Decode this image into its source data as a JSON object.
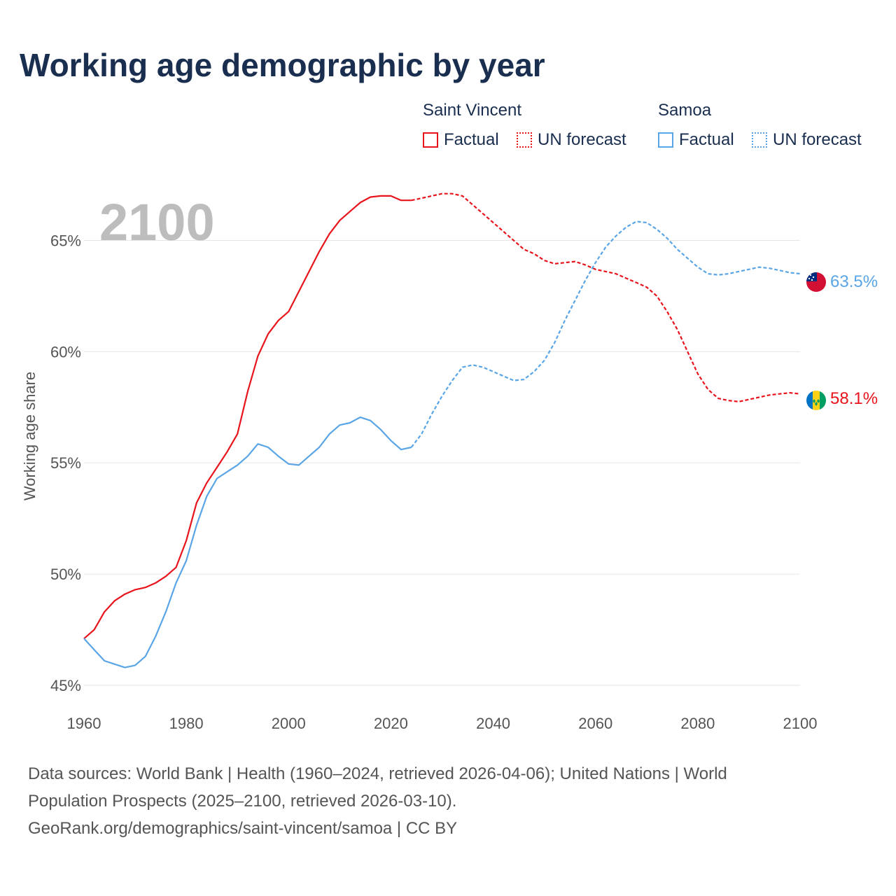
{
  "title": "Working age demographic by year",
  "legend": {
    "groups": [
      {
        "name": "Saint Vincent",
        "color": "#e8141c",
        "factual_label": "Factual",
        "forecast_label": "UN forecast"
      },
      {
        "name": "Samoa",
        "color": "#5aa5e6",
        "factual_label": "Factual",
        "forecast_label": "UN forecast"
      }
    ]
  },
  "chart_data": {
    "type": "line",
    "title": "Working age demographic by year",
    "ylabel": "Working age share",
    "xlabel": "",
    "xlim": [
      1960,
      2100
    ],
    "ylim": [
      45,
      67.5
    ],
    "x_ticks": [
      "1960",
      "1980",
      "2000",
      "2020",
      "2040",
      "2060",
      "2080",
      "2100"
    ],
    "y_ticks": [
      "45%",
      "50%",
      "55%",
      "60%",
      "65%"
    ],
    "y_tick_values": [
      45,
      50,
      55,
      60,
      65
    ],
    "x_tick_values": [
      1960,
      1980,
      2000,
      2020,
      2040,
      2060,
      2080,
      2100
    ],
    "current_year": "2100",
    "forecast_start": 2024,
    "series": [
      {
        "name": "Saint Vincent",
        "color": "#e8141c",
        "end_label": "58.1%",
        "points": [
          [
            1960,
            47.1
          ],
          [
            1962,
            47.5
          ],
          [
            1964,
            48.3
          ],
          [
            1966,
            48.8
          ],
          [
            1968,
            49.1
          ],
          [
            1970,
            49.3
          ],
          [
            1972,
            49.4
          ],
          [
            1974,
            49.6
          ],
          [
            1976,
            49.9
          ],
          [
            1978,
            50.3
          ],
          [
            1980,
            51.5
          ],
          [
            1982,
            53.2
          ],
          [
            1984,
            54.1
          ],
          [
            1986,
            54.8
          ],
          [
            1988,
            55.5
          ],
          [
            1990,
            56.3
          ],
          [
            1992,
            58.2
          ],
          [
            1994,
            59.8
          ],
          [
            1996,
            60.8
          ],
          [
            1998,
            61.4
          ],
          [
            2000,
            61.8
          ],
          [
            2002,
            62.7
          ],
          [
            2004,
            63.6
          ],
          [
            2006,
            64.5
          ],
          [
            2008,
            65.3
          ],
          [
            2010,
            65.9
          ],
          [
            2012,
            66.3
          ],
          [
            2014,
            66.7
          ],
          [
            2016,
            66.95
          ],
          [
            2018,
            67.0
          ],
          [
            2020,
            67.0
          ],
          [
            2022,
            66.8
          ],
          [
            2024,
            66.8
          ],
          [
            2026,
            66.9
          ],
          [
            2028,
            67.0
          ],
          [
            2030,
            67.1
          ],
          [
            2032,
            67.1
          ],
          [
            2034,
            67.0
          ],
          [
            2036,
            66.6
          ],
          [
            2038,
            66.2
          ],
          [
            2040,
            65.8
          ],
          [
            2042,
            65.4
          ],
          [
            2044,
            65.0
          ],
          [
            2046,
            64.6
          ],
          [
            2048,
            64.4
          ],
          [
            2050,
            64.1
          ],
          [
            2052,
            63.95
          ],
          [
            2054,
            64.0
          ],
          [
            2056,
            64.05
          ],
          [
            2058,
            63.9
          ],
          [
            2060,
            63.7
          ],
          [
            2062,
            63.6
          ],
          [
            2064,
            63.5
          ],
          [
            2066,
            63.3
          ],
          [
            2068,
            63.1
          ],
          [
            2070,
            62.9
          ],
          [
            2072,
            62.5
          ],
          [
            2074,
            61.8
          ],
          [
            2076,
            61.0
          ],
          [
            2078,
            60.0
          ],
          [
            2080,
            59.0
          ],
          [
            2082,
            58.3
          ],
          [
            2084,
            57.9
          ],
          [
            2086,
            57.8
          ],
          [
            2088,
            57.75
          ],
          [
            2090,
            57.85
          ],
          [
            2092,
            57.95
          ],
          [
            2094,
            58.05
          ],
          [
            2096,
            58.1
          ],
          [
            2098,
            58.15
          ],
          [
            2100,
            58.1
          ]
        ]
      },
      {
        "name": "Samoa",
        "color": "#5aa5e6",
        "end_label": "63.5%",
        "points": [
          [
            1960,
            47.1
          ],
          [
            1962,
            46.6
          ],
          [
            1964,
            46.1
          ],
          [
            1966,
            45.95
          ],
          [
            1968,
            45.8
          ],
          [
            1970,
            45.9
          ],
          [
            1972,
            46.3
          ],
          [
            1974,
            47.2
          ],
          [
            1976,
            48.3
          ],
          [
            1978,
            49.6
          ],
          [
            1980,
            50.6
          ],
          [
            1982,
            52.2
          ],
          [
            1984,
            53.5
          ],
          [
            1986,
            54.3
          ],
          [
            1988,
            54.6
          ],
          [
            1990,
            54.9
          ],
          [
            1992,
            55.3
          ],
          [
            1994,
            55.85
          ],
          [
            1996,
            55.7
          ],
          [
            1998,
            55.3
          ],
          [
            2000,
            54.95
          ],
          [
            2002,
            54.9
          ],
          [
            2004,
            55.3
          ],
          [
            2006,
            55.7
          ],
          [
            2008,
            56.3
          ],
          [
            2010,
            56.7
          ],
          [
            2012,
            56.8
          ],
          [
            2014,
            57.05
          ],
          [
            2016,
            56.9
          ],
          [
            2018,
            56.5
          ],
          [
            2020,
            56.0
          ],
          [
            2022,
            55.6
          ],
          [
            2024,
            55.7
          ],
          [
            2026,
            56.3
          ],
          [
            2028,
            57.2
          ],
          [
            2030,
            58.0
          ],
          [
            2032,
            58.7
          ],
          [
            2034,
            59.3
          ],
          [
            2036,
            59.4
          ],
          [
            2038,
            59.3
          ],
          [
            2040,
            59.1
          ],
          [
            2042,
            58.9
          ],
          [
            2044,
            58.7
          ],
          [
            2046,
            58.75
          ],
          [
            2048,
            59.1
          ],
          [
            2050,
            59.6
          ],
          [
            2052,
            60.4
          ],
          [
            2054,
            61.4
          ],
          [
            2056,
            62.3
          ],
          [
            2058,
            63.2
          ],
          [
            2060,
            64.0
          ],
          [
            2062,
            64.7
          ],
          [
            2064,
            65.2
          ],
          [
            2066,
            65.6
          ],
          [
            2068,
            65.85
          ],
          [
            2070,
            65.8
          ],
          [
            2072,
            65.5
          ],
          [
            2074,
            65.1
          ],
          [
            2076,
            64.6
          ],
          [
            2078,
            64.2
          ],
          [
            2080,
            63.8
          ],
          [
            2082,
            63.5
          ],
          [
            2084,
            63.45
          ],
          [
            2086,
            63.5
          ],
          [
            2088,
            63.6
          ],
          [
            2090,
            63.7
          ],
          [
            2092,
            63.8
          ],
          [
            2094,
            63.75
          ],
          [
            2096,
            63.65
          ],
          [
            2098,
            63.55
          ],
          [
            2100,
            63.5
          ]
        ]
      }
    ]
  },
  "footer": {
    "line1": "Data sources: World Bank | Health (1960–2024, retrieved 2026-04-06); United Nations | World",
    "line2": "Population Prospects (2025–2100, retrieved 2026-03-10).",
    "line3": "GeoRank.org/demographics/saint-vincent/samoa | CC BY"
  }
}
